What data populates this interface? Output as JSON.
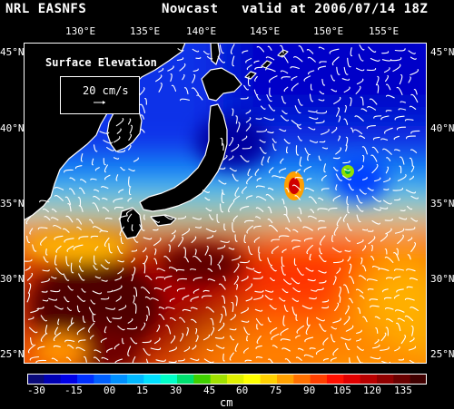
{
  "header": {
    "model": "NRL EASNFS",
    "product": "Nowcast",
    "valid": "valid at 2006/07/14 18Z"
  },
  "lon_ticks": [
    "130°E",
    "135°E",
    "140°E",
    "145°E",
    "150°E",
    "155°E"
  ],
  "lat_ticks": [
    "45°N",
    "40°N",
    "35°N",
    "30°N",
    "25°N"
  ],
  "panel_title": "Surface Elevation",
  "reference_vector": {
    "label": "20 cm/s",
    "speed_cm_s": 20
  },
  "colorbar": {
    "units": "cm",
    "tick_labels": [
      "-30",
      "-15",
      "00",
      "15",
      "30",
      "45",
      "60",
      "75",
      "90",
      "105",
      "120",
      "135"
    ],
    "range": [
      -37,
      143
    ],
    "colors": [
      "#0a0a7a",
      "#0000b4",
      "#0000e6",
      "#0030ff",
      "#0060ff",
      "#0090ff",
      "#00b8ff",
      "#00e0ff",
      "#00ffc8",
      "#00e070",
      "#40d000",
      "#a0e000",
      "#e0f000",
      "#ffff00",
      "#ffd000",
      "#ffa000",
      "#ff7000",
      "#ff4000",
      "#ff1000",
      "#e00000",
      "#b80000",
      "#900000",
      "#6a0000",
      "#400000"
    ]
  },
  "colors": {
    "background": "#000000",
    "land": "#000000",
    "coast": "#ffffff",
    "vectors": "#ffffff"
  }
}
